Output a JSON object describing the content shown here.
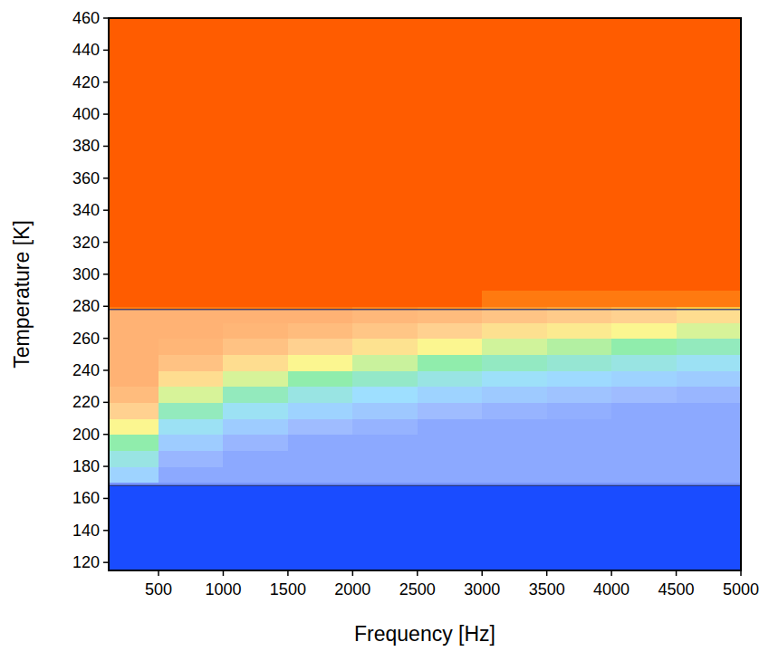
{
  "chart_data": {
    "type": "heatmap",
    "x_label": "Frequency [Hz]",
    "y_label": "Temperature [K]",
    "xlim": [
      115,
      5000
    ],
    "ylim": [
      115,
      460
    ],
    "xticks": [
      500,
      1000,
      1500,
      2000,
      2500,
      3000,
      3500,
      4000,
      4500,
      5000
    ],
    "yticks": [
      120,
      140,
      160,
      180,
      200,
      220,
      240,
      260,
      280,
      300,
      320,
      340,
      360,
      380,
      400,
      420,
      440,
      460
    ],
    "xbins": [
      0,
      500,
      1000,
      1500,
      2000,
      2500,
      3000,
      3500,
      4000,
      4500,
      5000
    ],
    "ybins": [
      110,
      130,
      140,
      150,
      160,
      170,
      180,
      190,
      200,
      210,
      220,
      230,
      240,
      250,
      260,
      270,
      280,
      290,
      300,
      310,
      320,
      330,
      340,
      350,
      360,
      370,
      380,
      390,
      400,
      410,
      420,
      430,
      440,
      450,
      460
    ],
    "zlim": [
      0,
      10
    ],
    "highlight_band": [
      168,
      278
    ],
    "values": [
      [
        0,
        0,
        0,
        0,
        0,
        0,
        0,
        0,
        0,
        0
      ],
      [
        0,
        0,
        0,
        0,
        0,
        0,
        0,
        0,
        0,
        0
      ],
      [
        0,
        0,
        0,
        0,
        0,
        0,
        0,
        0,
        0,
        0
      ],
      [
        0,
        0,
        0,
        0,
        0,
        0,
        0,
        0,
        0,
        0
      ],
      [
        0,
        0,
        0,
        0,
        0,
        0,
        0,
        0,
        0,
        0
      ],
      [
        3,
        1,
        1,
        1,
        1,
        1,
        1,
        1,
        1,
        1
      ],
      [
        4,
        1.7,
        1,
        1,
        1,
        1,
        1,
        1,
        1,
        1
      ],
      [
        5,
        2.7,
        1.7,
        1,
        1,
        1,
        1,
        1,
        1,
        1
      ],
      [
        6.5,
        3.7,
        2.7,
        2,
        1.5,
        1,
        1,
        1,
        1,
        1
      ],
      [
        8,
        4.7,
        3.7,
        3,
        2.5,
        2,
        1.6,
        1.3,
        1,
        1
      ],
      [
        9,
        6,
        4.7,
        4,
        3.5,
        3,
        2.6,
        2.3,
        2,
        1.7
      ],
      [
        9.5,
        7.5,
        6,
        5,
        4.5,
        4,
        3.6,
        3.3,
        3,
        2.7
      ],
      [
        9.5,
        8.7,
        7.5,
        6.5,
        5.8,
        5,
        4.6,
        4.3,
        4,
        3.7
      ],
      [
        9.5,
        9.3,
        8.7,
        8,
        7.3,
        6.5,
        5.9,
        5.5,
        5,
        4.7
      ],
      [
        9.5,
        9.5,
        9.3,
        9,
        8.5,
        8,
        7.4,
        7,
        6.5,
        6
      ],
      [
        9.5,
        9.5,
        9.5,
        9.5,
        9.2,
        9,
        8.6,
        8.3,
        8,
        7.5
      ],
      [
        10,
        10,
        10,
        10,
        10,
        10,
        9.5,
        9.5,
        9.5,
        9.5
      ],
      [
        10,
        10,
        10,
        10,
        10,
        10,
        10,
        10,
        10,
        10
      ],
      [
        10,
        10,
        10,
        10,
        10,
        10,
        10,
        10,
        10,
        10
      ],
      [
        10,
        10,
        10,
        10,
        10,
        10,
        10,
        10,
        10,
        10
      ],
      [
        10,
        10,
        10,
        10,
        10,
        10,
        10,
        10,
        10,
        10
      ],
      [
        10,
        10,
        10,
        10,
        10,
        10,
        10,
        10,
        10,
        10
      ],
      [
        10,
        10,
        10,
        10,
        10,
        10,
        10,
        10,
        10,
        10
      ],
      [
        10,
        10,
        10,
        10,
        10,
        10,
        10,
        10,
        10,
        10
      ],
      [
        10,
        10,
        10,
        10,
        10,
        10,
        10,
        10,
        10,
        10
      ],
      [
        10,
        10,
        10,
        10,
        10,
        10,
        10,
        10,
        10,
        10
      ],
      [
        10,
        10,
        10,
        10,
        10,
        10,
        10,
        10,
        10,
        10
      ],
      [
        10,
        10,
        10,
        10,
        10,
        10,
        10,
        10,
        10,
        10
      ],
      [
        10,
        10,
        10,
        10,
        10,
        10,
        10,
        10,
        10,
        10
      ],
      [
        10,
        10,
        10,
        10,
        10,
        10,
        10,
        10,
        10,
        10
      ],
      [
        10,
        10,
        10,
        10,
        10,
        10,
        10,
        10,
        10,
        10
      ],
      [
        10,
        10,
        10,
        10,
        10,
        10,
        10,
        10,
        10,
        10
      ],
      [
        10,
        10,
        10,
        10,
        10,
        10,
        10,
        10,
        10,
        10
      ],
      [
        10,
        10,
        10,
        10,
        10,
        10,
        10,
        10,
        10,
        10
      ]
    ]
  }
}
